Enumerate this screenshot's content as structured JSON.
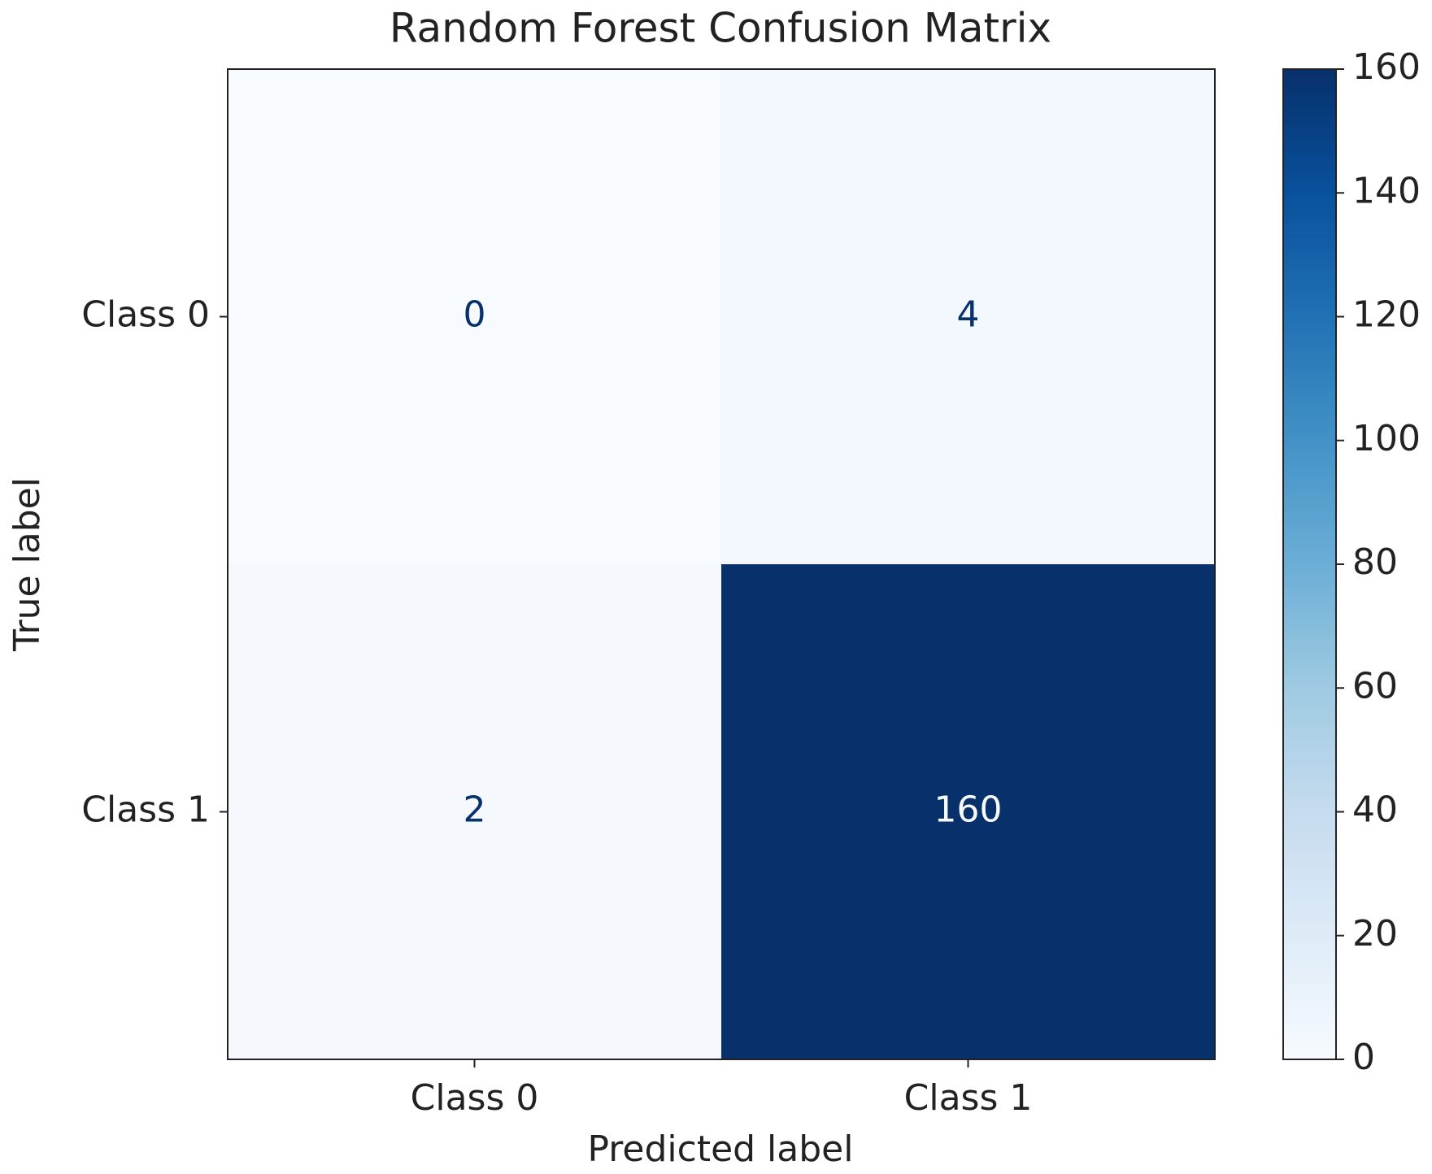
{
  "chart_data": {
    "type": "heatmap",
    "title": "Random Forest Confusion Matrix",
    "x_label": "Predicted label",
    "y_label": "True label",
    "x_categories": [
      "Class 0",
      "Class 1"
    ],
    "y_categories": [
      "Class 0",
      "Class 1"
    ],
    "values": [
      [
        0,
        4
      ],
      [
        2,
        160
      ]
    ],
    "colormap": [
      "#f7fbff",
      "#deebf7",
      "#c6dbef",
      "#9ecae1",
      "#6baed6",
      "#4292c6",
      "#2171b5",
      "#08519c",
      "#08306b"
    ],
    "zlim": [
      0,
      160
    ],
    "zticks": [
      0,
      20,
      40,
      60,
      80,
      100,
      120,
      140,
      160
    ]
  }
}
